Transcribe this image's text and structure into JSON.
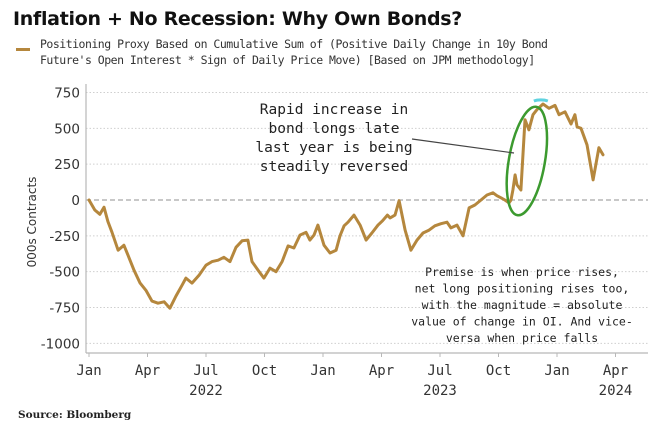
{
  "chart_data": {
    "type": "line",
    "title": "Inflation + No Recession: Why Own Bonds?",
    "legend": [
      {
        "label_lines": [
          "Positioning Proxy Based on Cumulative Sum of (Positive Daily Change in 10y Bond",
          "Future's Open Interest * Sign of Daily Price Move) [Based on JPM methodology]"
        ],
        "color": "#b5873d"
      }
    ],
    "legend_placement": "top-left",
    "ylabel": "000s Contracts",
    "xlabel": "",
    "ylim": [
      -1050,
      780
    ],
    "yticks": [
      750,
      500,
      250,
      0,
      -250,
      -500,
      -750,
      -1000
    ],
    "ytick_labels": [
      "750",
      "500",
      "250",
      "0",
      "-250",
      "-500",
      "-750",
      "-1000"
    ],
    "x_range_months": [
      0,
      28.5
    ],
    "xticks": [
      {
        "month": 0,
        "label": "Jan",
        "year": ""
      },
      {
        "month": 3,
        "label": "Apr",
        "year": ""
      },
      {
        "month": 6,
        "label": "Jul",
        "year": "2022"
      },
      {
        "month": 9,
        "label": "Oct",
        "year": ""
      },
      {
        "month": 12,
        "label": "Jan",
        "year": ""
      },
      {
        "month": 15,
        "label": "Apr",
        "year": ""
      },
      {
        "month": 18,
        "label": "Jul",
        "year": "2023"
      },
      {
        "month": 21,
        "label": "Oct",
        "year": ""
      },
      {
        "month": 24,
        "label": "Jan",
        "year": ""
      },
      {
        "month": 27,
        "label": "Apr",
        "year": "2024"
      }
    ],
    "x_note": "x values are months elapsed since Jan 2022",
    "grid": true,
    "zero_line": "dashed",
    "series": [
      {
        "name": "Positioning Proxy",
        "color": "#b5873d",
        "x": [
          0,
          0.3,
          0.56,
          0.77,
          0.97,
          1.18,
          1.49,
          1.79,
          2.0,
          2.31,
          2.62,
          2.92,
          3.23,
          3.54,
          3.85,
          4.15,
          4.46,
          4.77,
          4.97,
          5.28,
          5.64,
          6.0,
          6.31,
          6.62,
          6.92,
          7.23,
          7.54,
          7.85,
          8.15,
          8.36,
          8.67,
          8.97,
          9.28,
          9.59,
          9.9,
          10.21,
          10.51,
          10.82,
          11.13,
          11.33,
          11.54,
          11.74,
          12.05,
          12.36,
          12.67,
          12.87,
          13.08,
          13.28,
          13.59,
          13.9,
          14.21,
          14.51,
          14.82,
          15.05,
          15.3,
          15.44,
          15.69,
          15.9,
          16.21,
          16.51,
          16.82,
          17.13,
          17.44,
          17.74,
          18.05,
          18.36,
          18.56,
          18.87,
          19.18,
          19.49,
          19.79,
          20.1,
          20.41,
          20.72,
          20.92,
          21.13,
          21.33,
          21.54,
          21.64,
          21.74,
          21.85,
          21.95,
          22.15,
          22.36,
          22.56,
          22.77,
          22.97,
          23.28,
          23.59,
          23.9,
          24.1,
          24.41,
          24.72,
          24.92,
          25.03,
          25.23,
          25.54,
          25.85,
          26.15,
          26.36
        ],
        "values": [
          0,
          -70,
          -100,
          -50,
          -150,
          -225,
          -350,
          -315,
          -385,
          -490,
          -580,
          -630,
          -705,
          -720,
          -710,
          -755,
          -670,
          -595,
          -545,
          -580,
          -525,
          -455,
          -430,
          -420,
          -400,
          -430,
          -330,
          -285,
          -280,
          -430,
          -490,
          -545,
          -475,
          -500,
          -430,
          -320,
          -335,
          -245,
          -225,
          -280,
          -245,
          -175,
          -315,
          -370,
          -350,
          -250,
          -180,
          -155,
          -105,
          -175,
          -280,
          -230,
          -175,
          -145,
          -105,
          -125,
          -105,
          -5,
          -210,
          -350,
          -280,
          -230,
          -210,
          -180,
          -165,
          -155,
          -195,
          -175,
          -250,
          -55,
          -35,
          0,
          35,
          50,
          30,
          15,
          0,
          -20,
          0,
          70,
          175,
          105,
          70,
          560,
          490,
          595,
          630,
          670,
          640,
          660,
          595,
          615,
          530,
          595,
          510,
          500,
          385,
          140,
          365,
          315
        ]
      }
    ],
    "annotations": [
      {
        "text_lines": [
          "Rapid increase in",
          "bond longs late",
          "last year is being",
          "steadily reversed"
        ],
        "points_to": {
          "month": 21.9,
          "value": 300
        }
      },
      {
        "text_lines": [
          "Premise is when price rises,",
          "net long positioning rises too,",
          "with the magnitude = absolute",
          "value of change in OI. And vice-",
          "versa when price falls"
        ]
      }
    ],
    "highlight_ellipse": {
      "month_center": 22.3,
      "value_center": 300,
      "color": "#3c9a2f",
      "peak_marker_color": "#5fd3e0"
    },
    "source": "Source: Bloomberg"
  }
}
